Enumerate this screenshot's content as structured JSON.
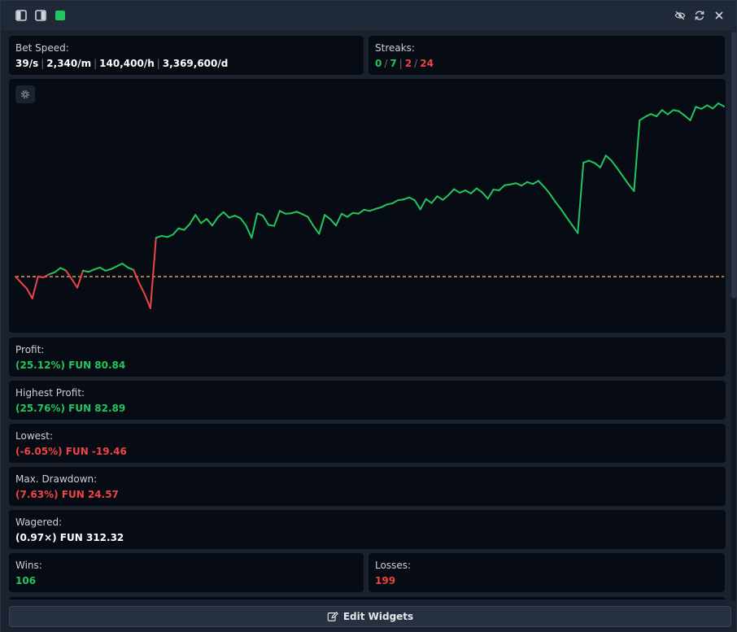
{
  "toolbar": {
    "left_icons": [
      "panel-left-icon",
      "panel-right-icon",
      "green-square-icon"
    ],
    "right_icons": [
      "eye-off-icon",
      "refresh-icon",
      "close-icon"
    ]
  },
  "colors": {
    "green": "#22c55e",
    "red": "#ef4444",
    "white": "#ffffff",
    "baseline": "#e0a054"
  },
  "bet_speed": {
    "label": "Bet Speed:",
    "values": [
      "39/s",
      "2,340/m",
      "140,400/h",
      "3,369,600/d"
    ],
    "separator": "|"
  },
  "streaks": {
    "label": "Streaks:",
    "values": [
      {
        "text": "0",
        "color": "green"
      },
      {
        "text": "7",
        "color": "green"
      },
      {
        "text": "2",
        "color": "red"
      },
      {
        "text": "24",
        "color": "red"
      }
    ],
    "separators": [
      "/",
      "|",
      "/"
    ]
  },
  "chart_data": {
    "type": "line",
    "baseline": 0,
    "series": [
      {
        "values": [
          0,
          -1.5,
          -3,
          -5.5,
          0,
          -0.2,
          0.6,
          1.1,
          2.2,
          1.5,
          -0.6,
          -2.8,
          1.5,
          1.2,
          1.8,
          2.3,
          1.5,
          1.9,
          2.6,
          3.3,
          2.3,
          1.7,
          -1.6,
          -4.5,
          -8.0,
          9.8,
          10.3,
          10.0,
          10.6,
          12.2,
          11.8,
          13.3,
          15.6,
          13.5,
          14.6,
          12.9,
          15.0,
          16.3,
          14.9,
          15.4,
          14.8,
          12.9,
          9.8,
          16.0,
          15.4,
          13.1,
          12.8,
          16.6,
          15.9,
          16.0,
          16.4,
          15.8,
          15.1,
          12.8,
          10.8,
          15.6,
          14.5,
          12.9,
          15.9,
          15.1,
          16.1,
          15.9,
          16.9,
          16.6,
          17.1,
          17.5,
          18.2,
          18.5,
          19.3,
          19.5,
          20.0,
          19.3,
          17.0,
          19.6,
          18.6,
          20.3,
          19.4,
          20.6,
          22.1,
          21.2,
          21.8,
          21.0,
          22.3,
          21.3,
          19.7,
          22.0,
          21.8,
          23.1,
          23.3,
          23.6,
          23.0,
          23.9,
          23.4,
          24.2,
          22.7,
          21.0,
          18.9,
          17.1,
          15.0,
          13.0,
          11.0,
          28.8,
          29.3,
          28.7,
          27.6,
          30.6,
          29.3,
          27.4,
          25.4,
          23.4,
          21.6,
          39.5,
          40.4,
          41.1,
          40.5,
          42.1,
          41.0,
          42.1,
          41.8,
          40.7,
          39.5,
          42.9,
          42.4,
          43.3,
          42.5,
          43.8,
          43.0
        ]
      }
    ],
    "legend": "none",
    "grid": false
  },
  "stats": {
    "profit": {
      "label": "Profit:",
      "value": "(25.12%) FUN 80.84",
      "color": "green"
    },
    "highest_profit": {
      "label": "Highest Profit:",
      "value": "(25.76%) FUN 82.89",
      "color": "green"
    },
    "lowest": {
      "label": "Lowest:",
      "value": "(-6.05%) FUN -19.46",
      "color": "red"
    },
    "max_drawdown": {
      "label": "Max. Drawdown:",
      "value": "(7.63%) FUN 24.57",
      "color": "red"
    },
    "wagered": {
      "label": "Wagered:",
      "value": "(0.97×) FUN 312.32",
      "color": "white"
    },
    "wins": {
      "label": "Wins:",
      "value": "106",
      "color": "green"
    },
    "losses": {
      "label": "Losses:",
      "value": "199",
      "color": "red"
    }
  },
  "footer": {
    "edit_label": "Edit Widgets"
  }
}
